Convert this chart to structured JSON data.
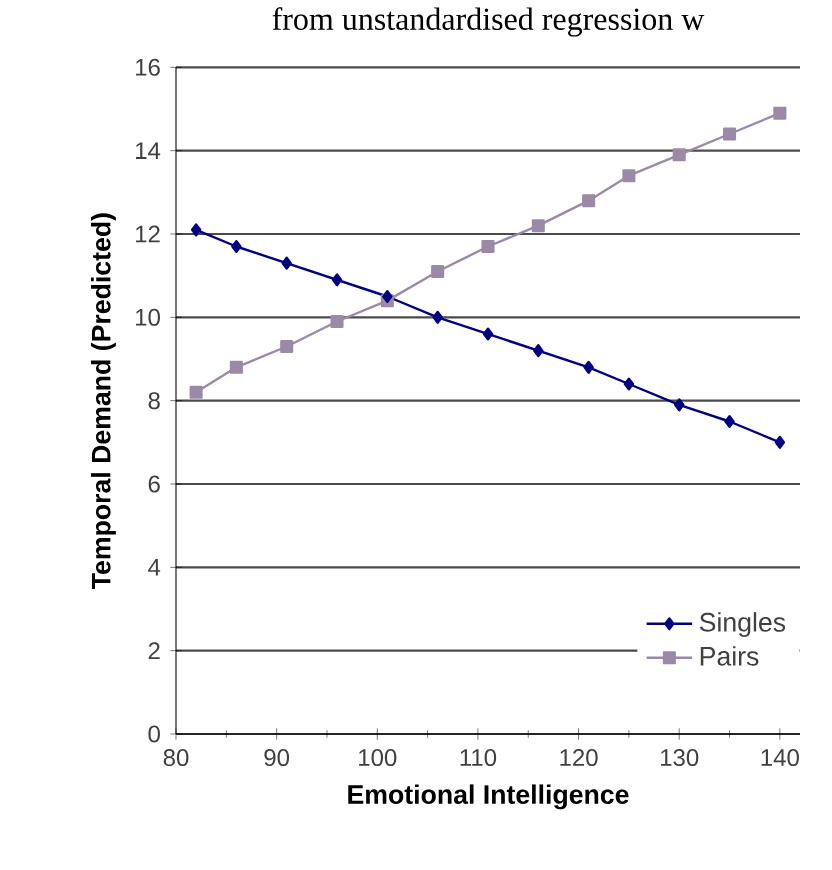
{
  "chart_data": {
    "type": "line",
    "title": "from unstandardised regression w",
    "xlabel": "Emotional Intelligence",
    "ylabel": "Temporal Demand (Predicted)",
    "x": [
      82,
      86,
      91,
      96,
      101,
      106,
      111,
      116,
      121,
      125,
      130,
      135,
      140
    ],
    "series": [
      {
        "name": "Singles",
        "color": "#000080",
        "marker": "diamond",
        "values": [
          12.1,
          11.7,
          11.3,
          10.9,
          10.5,
          10.0,
          9.6,
          9.2,
          8.8,
          8.4,
          7.9,
          7.5,
          7.0
        ]
      },
      {
        "name": "Pairs",
        "color": "#9a8aa8",
        "marker": "square",
        "values": [
          8.2,
          8.8,
          9.3,
          9.9,
          10.4,
          11.1,
          11.7,
          12.2,
          12.8,
          13.4,
          13.9,
          14.4,
          14.9
        ]
      }
    ],
    "xlim": [
      80,
      142
    ],
    "xticks": [
      80,
      90,
      100,
      110,
      120,
      130,
      140
    ],
    "ylim": [
      0,
      16
    ],
    "yticks": [
      0,
      2,
      4,
      6,
      8,
      10,
      12,
      14,
      16
    ],
    "grid": "y",
    "legend": "bottom right",
    "line_style": "solid"
  }
}
